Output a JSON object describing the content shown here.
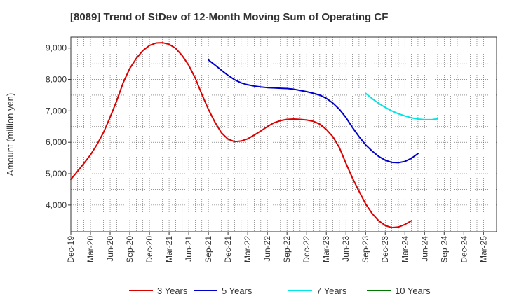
{
  "chart_data": {
    "type": "line",
    "title": "[8089]  Trend of StDev of 12-Month Moving Sum of Operating CF",
    "xlabel": "",
    "ylabel": "Amount (million yen)",
    "ylim": [
      3150,
      9350
    ],
    "yticks": [
      4000,
      5000,
      6000,
      7000,
      8000,
      9000
    ],
    "ytick_labels": [
      "4,000",
      "5,000",
      "6,000",
      "7,000",
      "8,000",
      "9,000"
    ],
    "x_tick_labels": [
      "Dec-19",
      "Mar-20",
      "Jun-20",
      "Sep-20",
      "Dec-20",
      "Mar-21",
      "Jun-21",
      "Sep-21",
      "Dec-21",
      "Mar-22",
      "Jun-22",
      "Sep-22",
      "Dec-22",
      "Mar-23",
      "Jun-23",
      "Sep-23",
      "Dec-23",
      "Mar-24",
      "Jun-24",
      "Sep-24",
      "Dec-24",
      "Mar-25"
    ],
    "grid": true,
    "legend_position": "bottom",
    "series": [
      {
        "name": "3 Years",
        "color": "#dd0000",
        "start_month_index": 0,
        "values": [
          4820,
          5070,
          5330,
          5600,
          5930,
          6320,
          6800,
          7320,
          7900,
          8350,
          8670,
          8920,
          9080,
          9160,
          9170,
          9120,
          8990,
          8760,
          8450,
          8040,
          7530,
          7050,
          6640,
          6300,
          6100,
          6020,
          6040,
          6110,
          6230,
          6360,
          6500,
          6620,
          6690,
          6730,
          6740,
          6730,
          6710,
          6670,
          6580,
          6410,
          6180,
          5830,
          5330,
          4860,
          4440,
          4040,
          3730,
          3500,
          3350,
          3280,
          3300,
          3380,
          3500
        ]
      },
      {
        "name": "5 Years",
        "color": "#0000cc",
        "start_month_index": 21,
        "values": [
          8620,
          8460,
          8290,
          8130,
          7990,
          7890,
          7830,
          7790,
          7760,
          7740,
          7730,
          7720,
          7710,
          7690,
          7650,
          7610,
          7560,
          7500,
          7400,
          7250,
          7050,
          6790,
          6470,
          6180,
          5920,
          5720,
          5550,
          5430,
          5360,
          5350,
          5390,
          5490,
          5640
        ]
      },
      {
        "name": "7 Years",
        "color": "#00e5e5",
        "start_month_index": 45,
        "values": [
          7560,
          7390,
          7240,
          7110,
          7000,
          6910,
          6840,
          6780,
          6740,
          6720,
          6720,
          6750
        ]
      },
      {
        "name": "10 Years",
        "color": "#007700",
        "start_month_index": 0,
        "values": []
      }
    ]
  }
}
